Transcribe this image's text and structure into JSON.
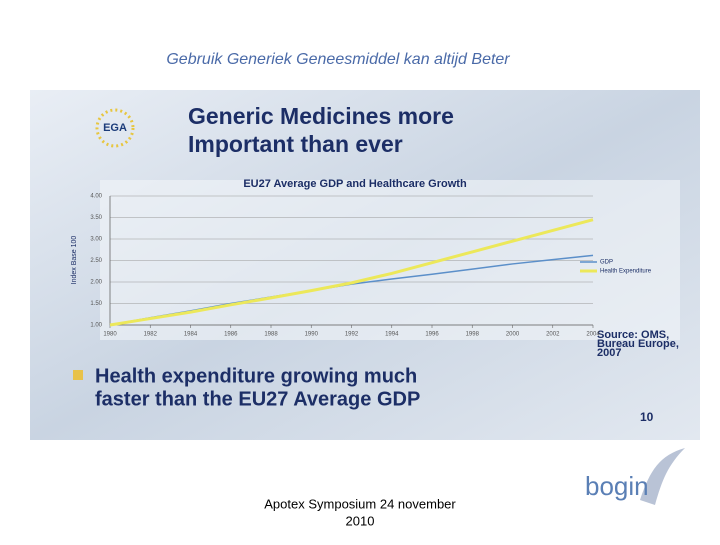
{
  "header": "Gebruik Generiek Geneesmiddel kan altijd Beter",
  "slide": {
    "logo": "EGA",
    "title_lines": [
      "Generic Medicines more",
      "Important than ever"
    ],
    "source_lines": [
      "Source: OMS,",
      "Bureau Europe,",
      "2007"
    ],
    "bullet_lines": [
      "Health expenditure growing much",
      "faster than the EU27 Average GDP"
    ],
    "slide_number": "10"
  },
  "footer_lines": [
    "Apotex Symposium 24 november",
    "2010"
  ],
  "brand": "bogin",
  "chart_data": {
    "type": "line",
    "title": "EU27 Average GDP and Healthcare Growth",
    "y_label": "Index Base 100",
    "x": [
      1980,
      1982,
      1984,
      1986,
      1988,
      1990,
      1992,
      1994,
      1996,
      1998,
      2000,
      2002,
      2004
    ],
    "series": [
      {
        "name": "GDP",
        "color": "#5b8fc9",
        "values": [
          1.0,
          1.17,
          1.33,
          1.5,
          1.65,
          1.8,
          1.95,
          2.07,
          2.18,
          2.3,
          2.42,
          2.52,
          2.62
        ]
      },
      {
        "name": "Health Expenditure",
        "color": "#ece85a",
        "values": [
          1.0,
          1.15,
          1.3,
          1.47,
          1.63,
          1.8,
          1.98,
          2.2,
          2.45,
          2.7,
          2.95,
          3.2,
          3.45
        ]
      }
    ],
    "xlim": [
      1980,
      2004
    ],
    "xticks": [
      1980,
      1982,
      1984,
      1986,
      1988,
      1990,
      1992,
      1994,
      1996,
      1998,
      2000,
      2002,
      2004
    ],
    "ylim": [
      1,
      4
    ],
    "yticks": [
      {
        "value": 1,
        "label": "1.00"
      },
      {
        "value": 1.5,
        "label": "1.50"
      },
      {
        "value": 2,
        "label": "2.00"
      },
      {
        "value": 2.5,
        "label": "2.50"
      },
      {
        "value": 3,
        "label": "3.00"
      },
      {
        "value": 3.5,
        "label": "3.50"
      },
      {
        "value": 4,
        "label": "4.00"
      }
    ],
    "grid": true
  }
}
